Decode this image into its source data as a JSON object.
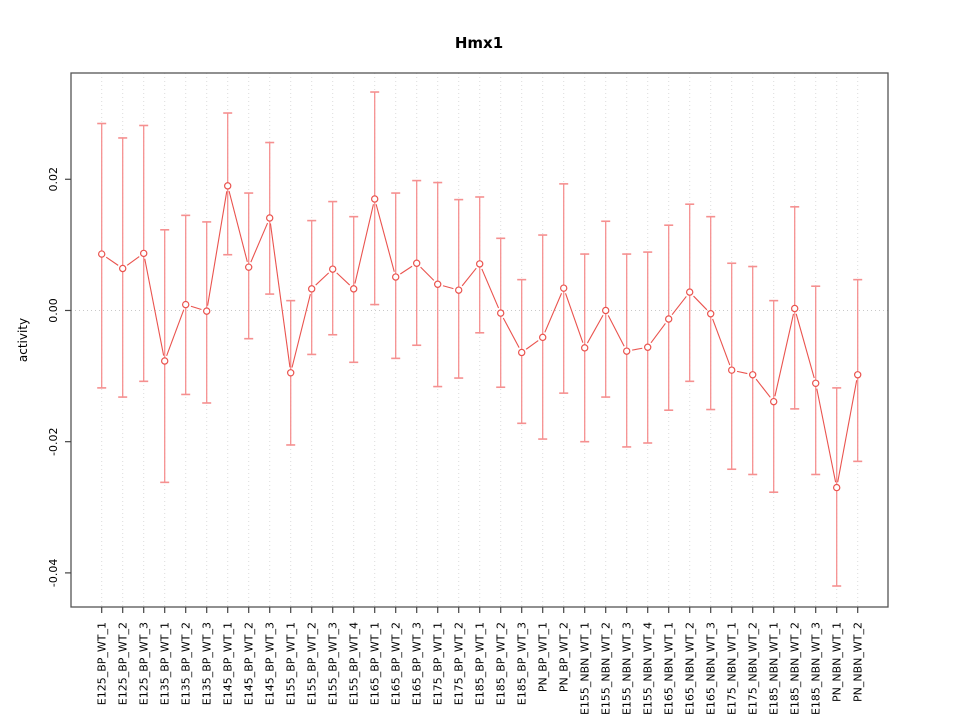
{
  "window": {
    "title": "Hmx1"
  },
  "chart_data": {
    "type": "line",
    "subtype": "points-with-error-bars",
    "title": "Hmx1",
    "xlabel": "",
    "ylabel": "activity",
    "legend": "none",
    "grid": "vertical dotted line at every category; horizontal dotted line at y=0",
    "ylim": [
      -0.0452,
      0.0362
    ],
    "yticks": [
      0.02,
      0.0,
      -0.02,
      -0.04
    ],
    "ytick_labels": [
      "0.02",
      "0.00",
      "-0.02",
      "-0.04"
    ],
    "categories": [
      "E125_BP_WT_1",
      "E125_BP_WT_2",
      "E125_BP_WT_3",
      "E135_BP_WT_1",
      "E135_BP_WT_2",
      "E135_BP_WT_3",
      "E145_BP_WT_1",
      "E145_BP_WT_2",
      "E145_BP_WT_3",
      "E155_BP_WT_1",
      "E155_BP_WT_2",
      "E155_BP_WT_3",
      "E155_BP_WT_4",
      "E165_BP_WT_1",
      "E165_BP_WT_2",
      "E165_BP_WT_3",
      "E175_BP_WT_1",
      "E175_BP_WT_2",
      "E185_BP_WT_1",
      "E185_BP_WT_2",
      "E185_BP_WT_3",
      "PN_BP_WT_1",
      "PN_BP_WT_2",
      "E155_NBN_WT_1",
      "E155_NBN_WT_2",
      "E155_NBN_WT_3",
      "E155_NBN_WT_4",
      "E165_NBN_WT_1",
      "E165_NBN_WT_2",
      "E165_NBN_WT_3",
      "E175_NBN_WT_1",
      "E175_NBN_WT_2",
      "E185_NBN_WT_1",
      "E185_NBN_WT_2",
      "E185_NBN_WT_3",
      "PN_NBN_WT_1",
      "PN_NBN_WT_2"
    ],
    "series": [
      {
        "name": "activity",
        "values": [
          0.0086,
          0.0064,
          0.0087,
          -0.0077,
          0.0009,
          -0.0001,
          0.019,
          0.0066,
          0.0141,
          -0.0095,
          0.0033,
          0.0063,
          0.0033,
          0.017,
          0.0051,
          0.0072,
          0.004,
          0.0031,
          0.0071,
          -0.0004,
          -0.0064,
          -0.0041,
          0.0034,
          -0.0057,
          0.0,
          -0.0062,
          -0.0056,
          -0.0013,
          0.0028,
          -0.0005,
          -0.0091,
          -0.0098,
          -0.0139,
          0.0003,
          -0.0111,
          -0.027,
          -0.0098
        ],
        "upper": [
          0.0285,
          0.0263,
          0.0282,
          0.0123,
          0.0145,
          0.0135,
          0.0301,
          0.0179,
          0.0256,
          0.0015,
          0.0137,
          0.0166,
          0.0143,
          0.0333,
          0.0179,
          0.0198,
          0.0195,
          0.0169,
          0.0173,
          0.011,
          0.0047,
          0.0115,
          0.0193,
          0.0086,
          0.0136,
          0.0086,
          0.0089,
          0.013,
          0.0162,
          0.0143,
          0.0072,
          0.0067,
          0.0015,
          0.0158,
          0.0037,
          -0.0118,
          0.0047
        ],
        "lower": [
          -0.0118,
          -0.0132,
          -0.0108,
          -0.0262,
          -0.0128,
          -0.0141,
          0.0085,
          -0.0043,
          0.0025,
          -0.0205,
          -0.0067,
          -0.0037,
          -0.0079,
          0.0009,
          -0.0073,
          -0.0053,
          -0.0116,
          -0.0103,
          -0.0034,
          -0.0117,
          -0.0172,
          -0.0196,
          -0.0126,
          -0.02,
          -0.0132,
          -0.0208,
          -0.0202,
          -0.0152,
          -0.0108,
          -0.0151,
          -0.0242,
          -0.025,
          -0.0277,
          -0.015,
          -0.025,
          -0.042,
          -0.023
        ]
      }
    ],
    "colors": {
      "point": "#ea534e",
      "line": "#ea534e",
      "error_bar": "#f59090",
      "grid": "#dcdcdc",
      "zero_line": "#c9c9c9",
      "frame": "#555555",
      "tick": "#444444",
      "text": "#000000"
    }
  }
}
